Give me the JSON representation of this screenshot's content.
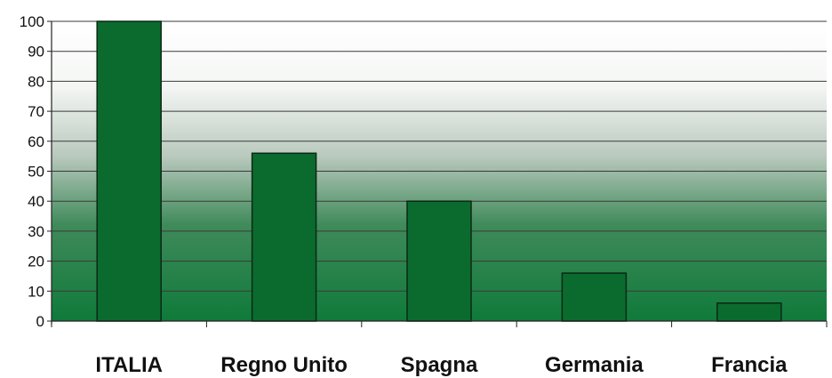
{
  "chart_data": {
    "type": "bar",
    "categories": [
      "ITALIA",
      "Regno Unito",
      "Spagna",
      "Germania",
      "Francia"
    ],
    "values": [
      100,
      56,
      40,
      16,
      6
    ],
    "ylim": [
      0,
      100
    ],
    "yticks": [
      0,
      10,
      20,
      30,
      40,
      50,
      60,
      70,
      80,
      90,
      100
    ],
    "grid": true,
    "title": "",
    "xlabel": "",
    "ylabel": "",
    "colors": {
      "bar": "#0b6b2e",
      "bar_edge": "#0a2a14",
      "plot_bottom": "#0f7a3a",
      "plot_top": "#ffffff",
      "grid": "#3a3a3a"
    }
  }
}
